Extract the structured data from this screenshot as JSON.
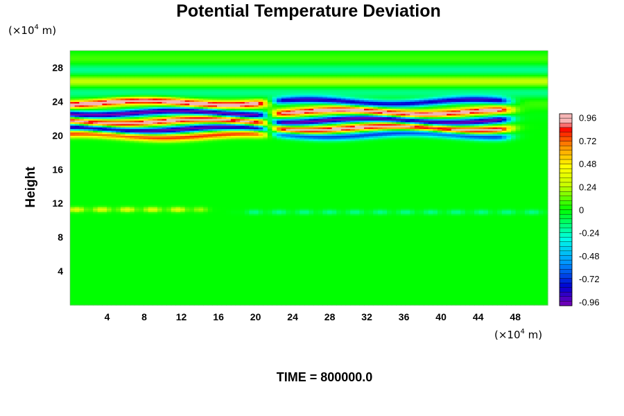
{
  "chart_data": {
    "type": "heatmap",
    "title": "Potential Temperature Deviation",
    "ylabel": "Height",
    "xlabel": "",
    "y_unit": {
      "prefix": "(×10",
      "exp": "4",
      "suffix": " m)"
    },
    "x_unit": {
      "prefix": "(×10",
      "exp": "4",
      "suffix": " m)"
    },
    "xlim": [
      0,
      51.5
    ],
    "ylim": [
      0,
      30
    ],
    "x_ticks": [
      4,
      8,
      12,
      16,
      20,
      24,
      28,
      32,
      36,
      40,
      44,
      48
    ],
    "y_ticks": [
      4,
      8,
      12,
      16,
      20,
      24,
      28
    ],
    "colorbar": {
      "range": [
        -1.0,
        1.0
      ],
      "ticks": [
        "0.96",
        "0.72",
        "0.48",
        "0.24",
        "0",
        "-0.24",
        "-0.48",
        "-0.72",
        "-0.96"
      ],
      "tick_values": [
        0.96,
        0.72,
        0.48,
        0.24,
        0,
        -0.24,
        -0.48,
        -0.72,
        -0.96
      ],
      "colors": [
        "#7a00b4",
        "#0000d2",
        "#0096ff",
        "#00ffe6",
        "#00ff00",
        "#c8ff00",
        "#ffff00",
        "#ff9600",
        "#ff0000",
        "#f5b4b4"
      ],
      "stops": [
        -1.0,
        -0.8,
        -0.55,
        -0.3,
        0.0,
        0.25,
        0.45,
        0.65,
        0.85,
        0.9
      ]
    },
    "features": [
      {
        "kind": "layer",
        "x_range": [
          0,
          20
        ],
        "y_center": 23.9,
        "amplitude": 1.0
      },
      {
        "kind": "layer",
        "x_range": [
          0,
          20
        ],
        "y_center": 22.7,
        "amplitude": -1.0
      },
      {
        "kind": "layer",
        "x_range": [
          0,
          20
        ],
        "y_center": 21.7,
        "amplitude": 1.0
      },
      {
        "kind": "layer",
        "x_range": [
          0,
          20
        ],
        "y_center": 20.8,
        "amplitude": -1.0
      },
      {
        "kind": "layer",
        "x_range": [
          0,
          20
        ],
        "y_center": 20.0,
        "amplitude": 0.8
      },
      {
        "kind": "layer",
        "x_range": [
          23,
          46
        ],
        "y_center": 24.0,
        "amplitude": -0.9
      },
      {
        "kind": "layer",
        "x_range": [
          23,
          46
        ],
        "y_center": 22.8,
        "amplitude": 1.0
      },
      {
        "kind": "layer",
        "x_range": [
          23,
          46
        ],
        "y_center": 21.8,
        "amplitude": -1.0
      },
      {
        "kind": "layer",
        "x_range": [
          23,
          46
        ],
        "y_center": 20.9,
        "amplitude": 1.0
      },
      {
        "kind": "layer",
        "x_range": [
          23,
          46
        ],
        "y_center": 20.1,
        "amplitude": -0.7
      },
      {
        "kind": "streak",
        "x_range": [
          0,
          13
        ],
        "y_center": 11.3,
        "amplitude": 0.35
      },
      {
        "kind": "streak",
        "x_range": [
          20,
          51
        ],
        "y_center": 11.0,
        "amplitude": -0.2
      }
    ]
  },
  "footer": {
    "time_label": "TIME = 800000.0"
  }
}
